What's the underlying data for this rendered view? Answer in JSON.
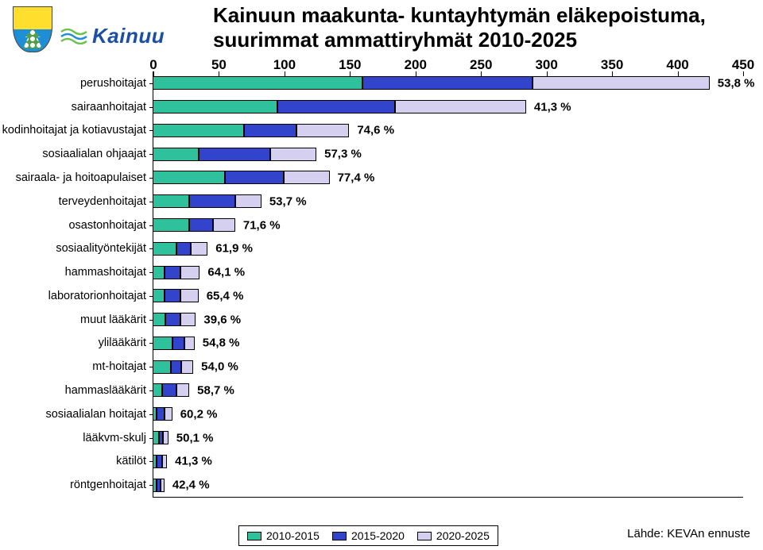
{
  "logo": {
    "name": "Kainuu"
  },
  "title": "Kainuun maakunta- kuntayhtymän eläkepoistuma, suurimmat ammattiryhmät 2010-2025",
  "chart": {
    "type": "bar",
    "orientation": "horizontal",
    "stacked": true,
    "x_axis": {
      "min": 0,
      "max": 450,
      "tick_step": 50,
      "tick_fontsize": 17
    },
    "y_label_fontsize": 14.5,
    "pct_label_fontsize": 15,
    "background_color": "#ffffff",
    "border_color": "#000000",
    "series": [
      {
        "name": "2010-2015",
        "color": "#2fc19b"
      },
      {
        "name": "2015-2020",
        "color": "#3344cc"
      },
      {
        "name": "2020-2025",
        "color": "#d5d0f0"
      }
    ],
    "categories": [
      {
        "label": "perushoitajat",
        "values": [
          160,
          130,
          135
        ],
        "pct_label": "53,8 %"
      },
      {
        "label": "sairaanhoitajat",
        "values": [
          95,
          90,
          100
        ],
        "pct_label": "41,3 %"
      },
      {
        "label": "kodinhoitajat ja kotiavustajat",
        "values": [
          70,
          40,
          40
        ],
        "pct_label": "74,6 %"
      },
      {
        "label": "sosiaalialan ohjaajat",
        "values": [
          35,
          55,
          35
        ],
        "pct_label": "57,3 %"
      },
      {
        "label": "sairaala- ja hoitoapulaiset",
        "values": [
          55,
          45,
          35
        ],
        "pct_label": "77,4 %"
      },
      {
        "label": "terveydenhoitajat",
        "values": [
          28,
          35,
          20
        ],
        "pct_label": "53,7 %"
      },
      {
        "label": "osastonhoitajat",
        "values": [
          28,
          18,
          17
        ],
        "pct_label": "71,6 %"
      },
      {
        "label": "sosiaalityöntekijät",
        "values": [
          18,
          11,
          13
        ],
        "pct_label": "61,9 %"
      },
      {
        "label": "hammashoitajat",
        "values": [
          9,
          12,
          15
        ],
        "pct_label": "64,1 %"
      },
      {
        "label": "laboratorionhoitajat",
        "values": [
          9,
          12,
          14
        ],
        "pct_label": "65,4 %"
      },
      {
        "label": "muut lääkärit",
        "values": [
          10,
          11,
          12
        ],
        "pct_label": "39,6 %"
      },
      {
        "label": "ylilääkärit",
        "values": [
          15,
          9,
          8
        ],
        "pct_label": "54,8 %"
      },
      {
        "label": "mt-hoitajat",
        "values": [
          14,
          8,
          9
        ],
        "pct_label": "54,0 %"
      },
      {
        "label": "hammaslääkärit",
        "values": [
          7,
          11,
          10
        ],
        "pct_label": "58,7 %"
      },
      {
        "label": "sosiaalialan hoitajat",
        "values": [
          3,
          6,
          6
        ],
        "pct_label": "60,2 %"
      },
      {
        "label": "lääkvm-skulj",
        "values": [
          5,
          3,
          4
        ],
        "pct_label": "50,1 %"
      },
      {
        "label": "kätilöt",
        "values": [
          3,
          4,
          4
        ],
        "pct_label": "41,3 %"
      },
      {
        "label": "röntgenhoitajat",
        "values": [
          3,
          3,
          3
        ],
        "pct_label": "42,4 %"
      }
    ]
  },
  "legend": {
    "items": [
      "2010-2015",
      "2015-2020",
      "2020-2025"
    ]
  },
  "source": "Lähde: KEVAn ennuste"
}
